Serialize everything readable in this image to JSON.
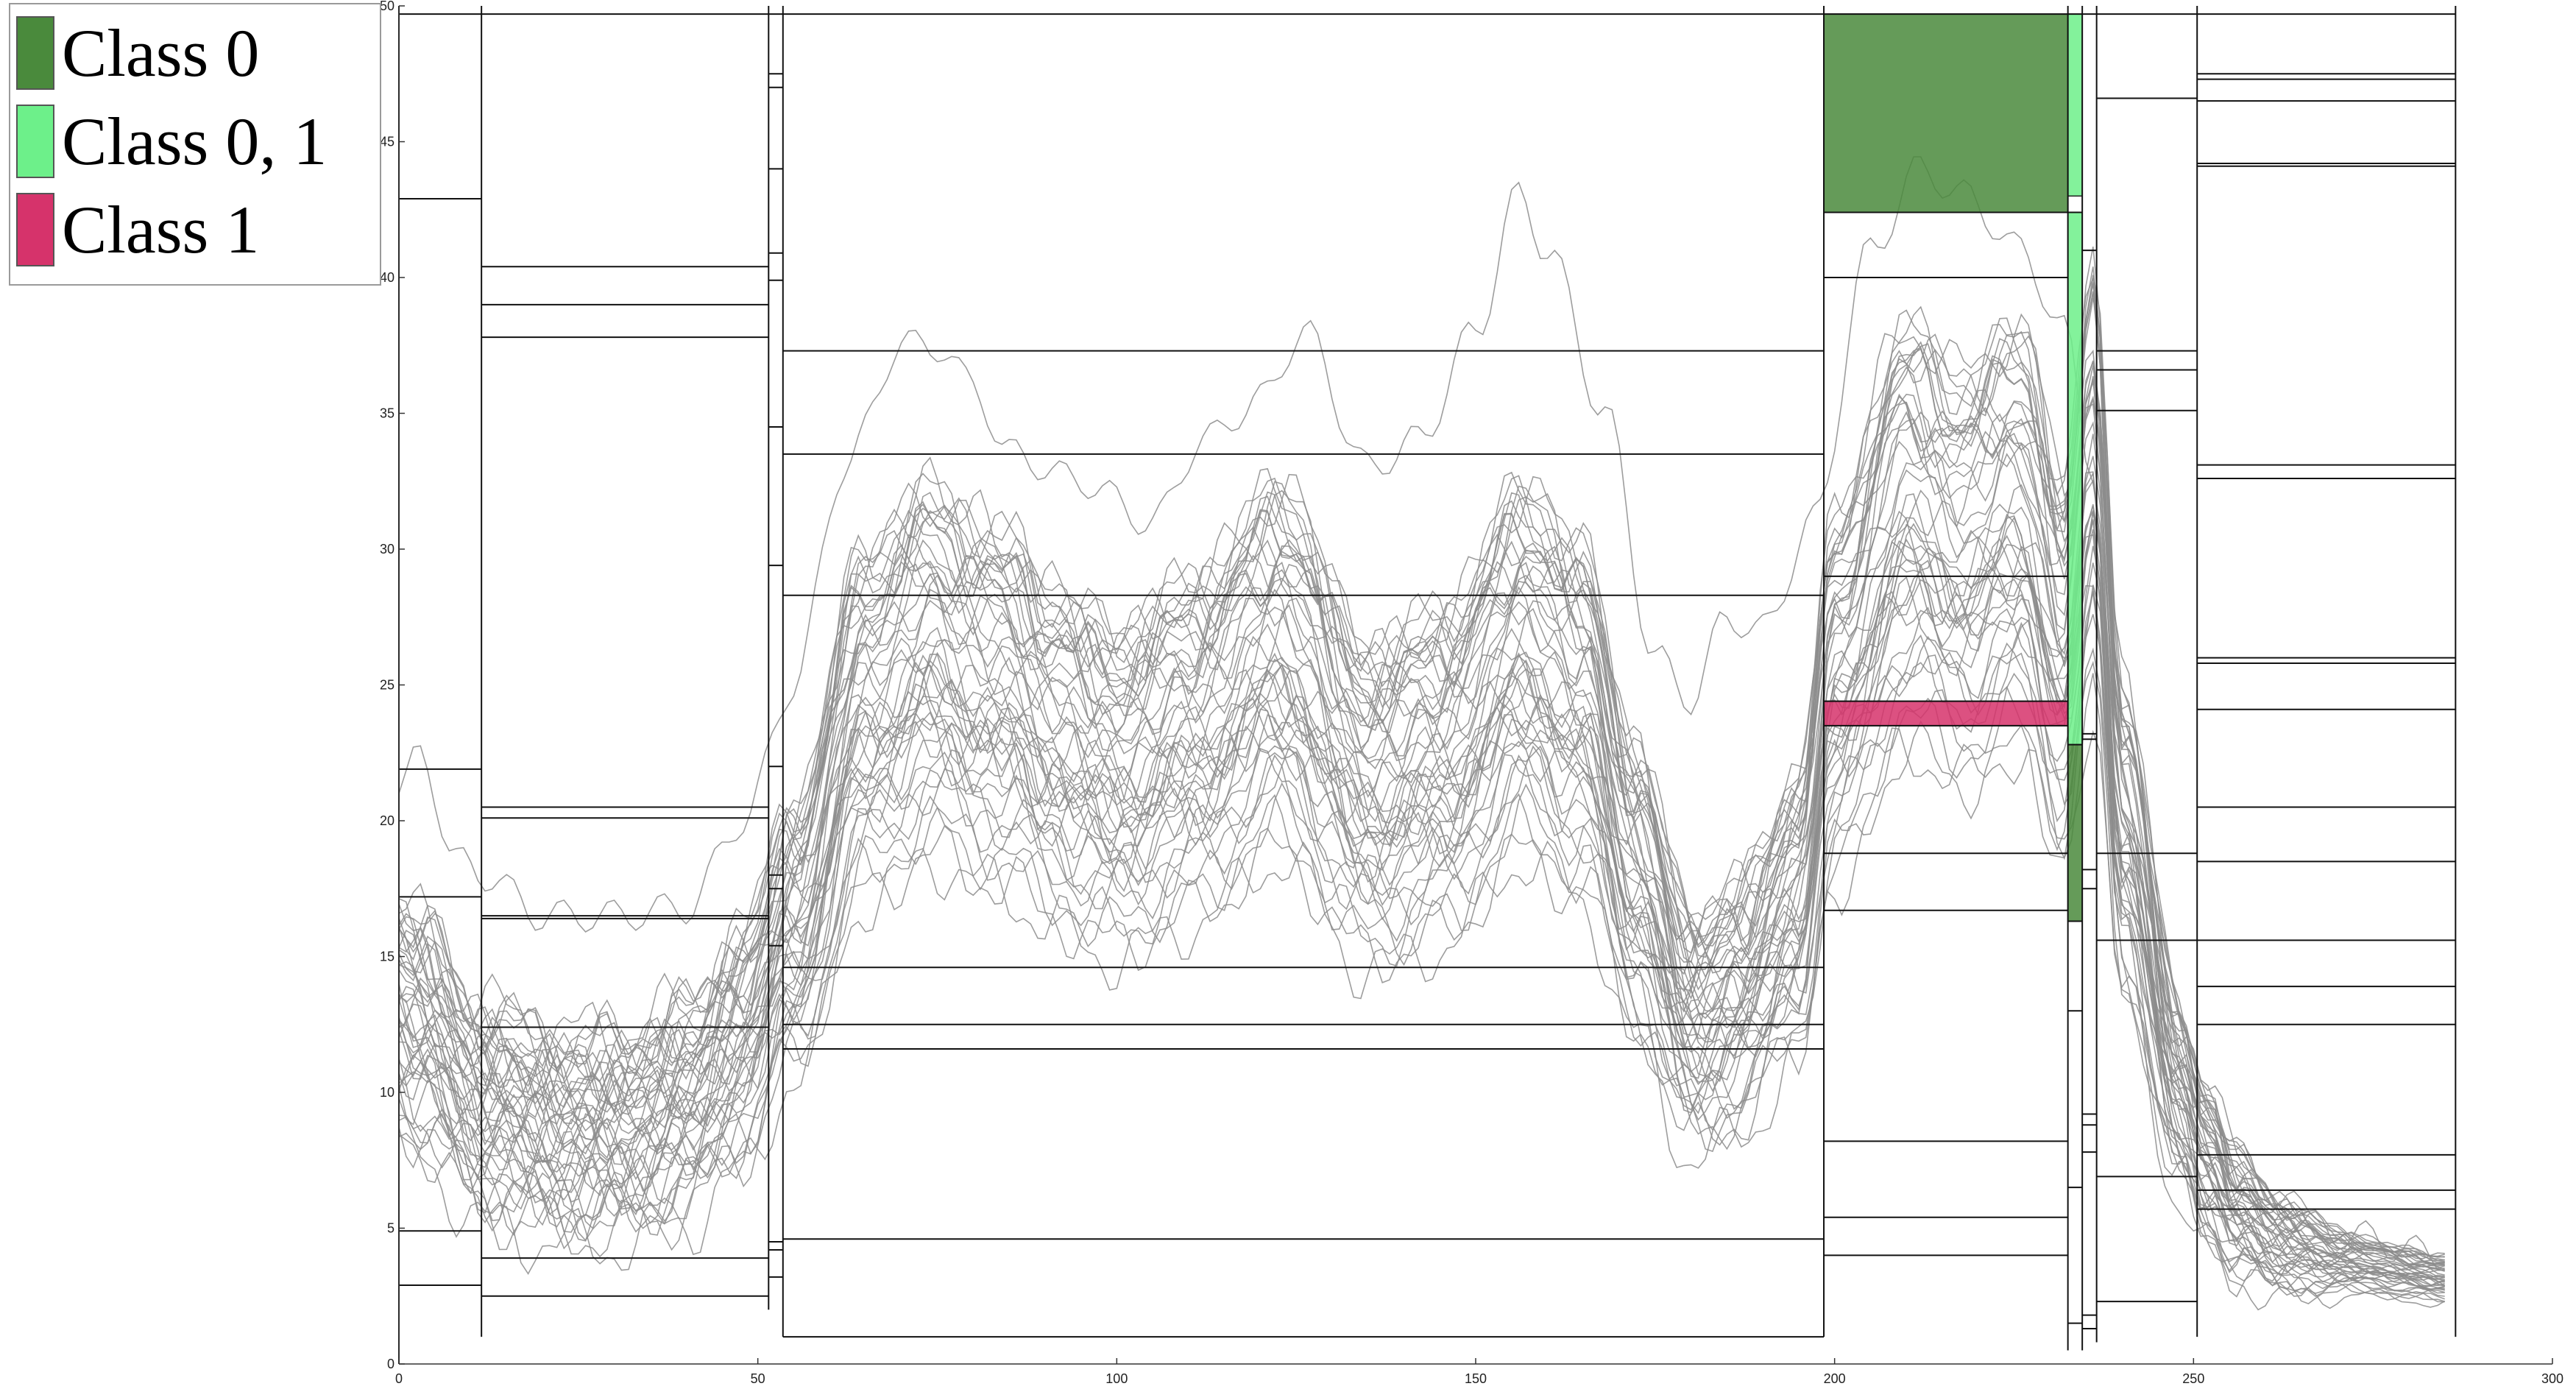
{
  "chart_data": {
    "type": "line",
    "title": "",
    "xlabel": "",
    "ylabel": "",
    "xlim": [
      0,
      300
    ],
    "ylim": [
      0,
      50
    ],
    "x_ticks": [
      0,
      50,
      100,
      150,
      200,
      250,
      300
    ],
    "y_ticks": [
      0,
      5,
      10,
      15,
      20,
      25,
      30,
      35,
      40,
      45,
      50
    ],
    "x_tick_labels": [
      "0",
      "50",
      "100",
      "150",
      "200",
      "250",
      "300"
    ],
    "y_tick_labels": [
      "0",
      "5",
      "10",
      "15",
      "20",
      "25",
      "30",
      "35",
      "40",
      "45",
      "50"
    ],
    "grid": false,
    "legend_position": "top-left",
    "legend": [
      {
        "label": "Class 0",
        "color": "#4a8a3c"
      },
      {
        "label": "Class 0, 1",
        "color": "#6df08a"
      },
      {
        "label": "Class 1",
        "color": "#d6336b"
      }
    ],
    "series_color": "#8c8c8c",
    "series_count": 45,
    "series_x_range": [
      0,
      285
    ],
    "series_shape": {
      "knots_x": [
        0,
        2,
        12,
        20,
        30,
        40,
        48,
        55,
        65,
        74,
        80,
        85,
        90,
        100,
        110,
        123,
        135,
        145,
        157,
        165,
        172,
        180,
        187,
        195,
        200,
        210,
        218,
        226,
        232,
        236,
        240,
        248,
        252,
        256,
        262,
        270,
        285
      ],
      "knots_y": [
        13,
        12.5,
        9.5,
        8.7,
        8.5,
        9.5,
        12,
        16,
        24,
        26,
        25,
        24.5,
        23,
        21.5,
        23,
        26,
        21,
        22,
        26,
        24,
        18,
        12.5,
        13.5,
        17,
        25,
        31,
        29.5,
        31,
        26,
        33,
        20,
        10,
        7.5,
        5.5,
        4.5,
        3.8,
        3.2
      ],
      "offset_range": [
        -6,
        7
      ]
    },
    "outlier_series": {
      "knots_x": [
        0,
        3,
        8,
        12,
        20,
        30,
        40,
        48,
        55,
        62,
        70,
        75,
        80,
        85,
        95,
        105,
        112,
        120,
        126,
        135,
        142,
        150,
        156,
        160,
        168,
        175,
        180,
        185,
        190,
        197,
        205,
        212,
        218,
        226,
        232,
        236,
        240,
        250,
        256,
        262,
        270,
        285
      ],
      "knots_y": [
        21,
        22.5,
        18.5,
        18,
        16.5,
        16.5,
        16.8,
        20,
        25,
        33,
        37.5,
        37.5,
        36,
        33.5,
        32.5,
        31,
        34,
        35.5,
        38,
        33,
        34,
        38,
        43,
        41,
        35,
        26,
        24.5,
        27.5,
        27,
        31,
        41,
        44,
        43,
        41,
        38,
        33,
        20,
        10,
        7.5,
        5.5,
        4.8,
        4
      ]
    },
    "split_rules": [
      {
        "x_range": [
          0,
          11.5
        ],
        "ys": [
          2.9,
          4.9,
          17.2,
          21.9,
          42.9
        ]
      },
      {
        "x_range": [
          11.5,
          51.5
        ],
        "ys": [
          2.5,
          3.9,
          12.4,
          16.4,
          16.5,
          20.1,
          20.5,
          37.8,
          39.0,
          40.4
        ]
      },
      {
        "x_range": [
          51.5,
          53.5
        ],
        "ys": [
          3.2,
          4.2,
          4.5,
          15.4,
          17.5,
          18.0,
          22.0,
          29.4,
          34.5,
          39.9,
          40.9,
          44.0,
          47.0,
          47.5
        ]
      },
      {
        "x_range": [
          53.5,
          198.5
        ],
        "ys": [
          1.0,
          4.6,
          11.6,
          12.5,
          14.6,
          28.3,
          33.5,
          37.3
        ]
      },
      {
        "x_range": [
          198.5,
          232.5
        ],
        "ys": [
          4.0,
          5.4,
          8.2,
          16.7,
          18.8,
          23.5,
          24.4,
          29.0,
          40.0,
          42.4
        ]
      },
      {
        "x_range": [
          232.5,
          234.5
        ],
        "ys": [
          1.5,
          6.5,
          13.0,
          16.3,
          22.8,
          42.4
        ]
      },
      {
        "x_range": [
          234.5,
          236.5
        ],
        "ys": [
          1.3,
          1.8,
          7.8,
          8.8,
          9.2,
          17.5,
          18.2,
          23.0,
          23.2,
          41.0
        ]
      },
      {
        "x_range": [
          236.5,
          250.5
        ],
        "ys": [
          2.3,
          6.9,
          15.6,
          18.8,
          35.1,
          36.6,
          37.3,
          46.6
        ]
      },
      {
        "x_range": [
          250.5,
          286.5
        ],
        "ys": [
          5.7,
          6.4,
          7.7,
          12.5,
          13.9,
          15.6,
          18.5,
          20.5,
          24.1,
          25.8,
          26.0,
          32.6,
          33.1,
          44.1,
          44.2,
          46.5,
          47.3,
          47.5
        ]
      }
    ],
    "split_columns": [
      {
        "x": 0,
        "y_range": [
          0,
          50
        ]
      },
      {
        "x": 11.5,
        "y_range": [
          1.0,
          50
        ]
      },
      {
        "x": 51.5,
        "y_range": [
          2.0,
          50
        ]
      },
      {
        "x": 53.5,
        "y_range": [
          1.0,
          50
        ]
      },
      {
        "x": 198.5,
        "y_range": [
          1.0,
          50
        ]
      },
      {
        "x": 232.5,
        "y_range": [
          0.5,
          50
        ]
      },
      {
        "x": 234.5,
        "y_range": [
          0.5,
          50
        ]
      },
      {
        "x": 236.5,
        "y_range": [
          0.8,
          50
        ]
      },
      {
        "x": 250.5,
        "y_range": [
          1.0,
          50
        ]
      },
      {
        "x": 286.5,
        "y_range": [
          1.0,
          50
        ]
      }
    ],
    "highlight_regions": [
      {
        "class": "Class 0",
        "x_range": [
          198.5,
          232.5
        ],
        "y_range": [
          42.4,
          49.7
        ],
        "color": "#4a8a3c"
      },
      {
        "class": "Class 1",
        "x_range": [
          198.5,
          232.5
        ],
        "y_range": [
          23.5,
          24.4
        ],
        "color": "#d6336b"
      },
      {
        "class": "Class 0, 1",
        "x_range": [
          232.5,
          234.5
        ],
        "y_range": [
          43.0,
          49.7
        ],
        "color": "#6df08a"
      },
      {
        "class": "Class 0, 1",
        "x_range": [
          232.5,
          234.5
        ],
        "y_range": [
          22.8,
          42.4
        ],
        "color": "#6df08a"
      },
      {
        "class": "Class 0",
        "x_range": [
          232.5,
          234.5
        ],
        "y_range": [
          16.3,
          22.8
        ],
        "color": "#4a8a3c"
      }
    ]
  }
}
